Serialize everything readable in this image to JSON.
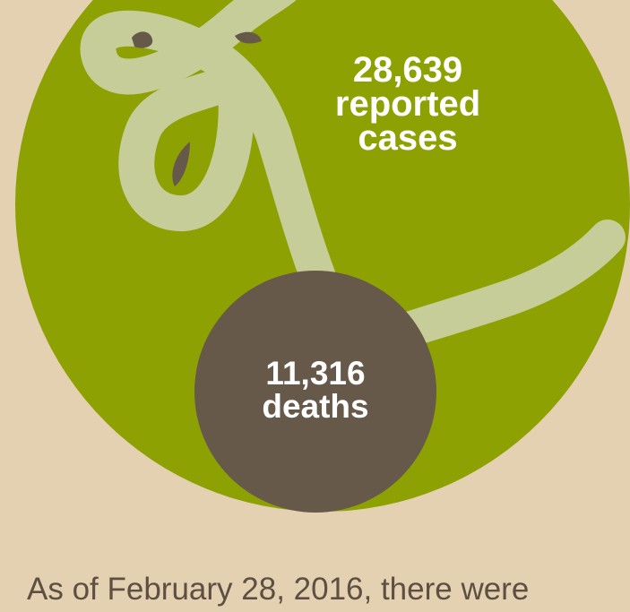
{
  "colors": {
    "background": "#e3d1b1",
    "cases_circle": "#8da102",
    "deaths_circle": "#67594a",
    "virus_strand": "#c6cd98",
    "label_text": "#ffffff",
    "caption_text": "#5e4f42"
  },
  "cases": {
    "number": "28,639",
    "line1": "reported",
    "line2": "cases"
  },
  "deaths": {
    "number": "11,316",
    "label": "deaths"
  },
  "caption": "As of February 28, 2016, there were",
  "icons": {
    "strand": "ebola-virus-strand-icon"
  }
}
